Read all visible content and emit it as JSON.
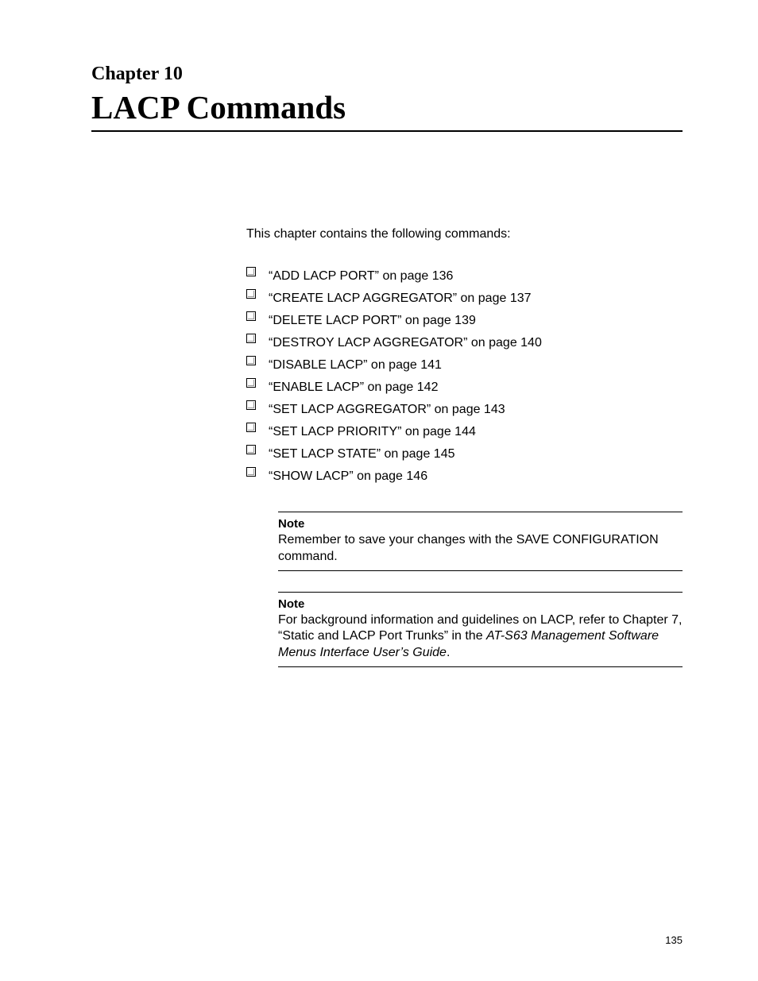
{
  "chapter_label": "Chapter 10",
  "chapter_title": "LACP Commands",
  "intro": "This chapter contains the following commands:",
  "commands": [
    "“ADD LACP PORT” on page 136",
    "“CREATE LACP AGGREGATOR” on page 137",
    "“DELETE LACP PORT” on page 139",
    "“DESTROY LACP AGGREGATOR” on page 140",
    "“DISABLE LACP” on page 141",
    "“ENABLE LACP” on page 142",
    "“SET LACP AGGREGATOR” on page 143",
    "“SET LACP PRIORITY” on page 144",
    "“SET LACP STATE” on page 145",
    "“SHOW LACP” on page 146"
  ],
  "note1": {
    "label": "Note",
    "text": "Remember to save your changes with the SAVE CONFIGURATION command."
  },
  "note2": {
    "label": "Note",
    "text_pre": "For background information and guidelines on LACP, refer to Chapter 7, “Static and LACP Port Trunks” in the ",
    "text_italic": "AT-S63 Management Software Menus Interface User’s Guide",
    "text_post": "."
  },
  "page_number": "135"
}
